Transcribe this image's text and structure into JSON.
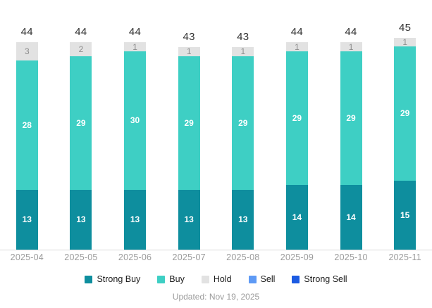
{
  "chart_data": {
    "type": "bar",
    "stacked": true,
    "title": "",
    "xlabel": "",
    "ylabel": "",
    "ylim": [
      0,
      45
    ],
    "grid": false,
    "legend_position": "bottom",
    "categories": [
      "2025-04",
      "2025-05",
      "2025-06",
      "2025-07",
      "2025-08",
      "2025-09",
      "2025-10",
      "2025-11"
    ],
    "series": [
      {
        "name": "Strong Buy",
        "color": "#0e8e9e",
        "label_color": "#ffffff",
        "values": [
          13,
          13,
          13,
          13,
          13,
          14,
          14,
          15
        ]
      },
      {
        "name": "Buy",
        "color": "#3ecfc4",
        "label_color": "#ffffff",
        "values": [
          28,
          29,
          30,
          29,
          29,
          29,
          29,
          29
        ]
      },
      {
        "name": "Hold",
        "color": "#e2e2e2",
        "label_color": "#8c8c8c",
        "values": [
          3,
          2,
          1,
          1,
          1,
          1,
          1,
          1
        ]
      },
      {
        "name": "Sell",
        "color": "#5e9af5",
        "label_color": "#ffffff",
        "values": [
          0,
          0,
          0,
          0,
          0,
          0,
          0,
          0
        ]
      },
      {
        "name": "Strong Sell",
        "color": "#1c5be2",
        "label_color": "#ffffff",
        "values": [
          0,
          0,
          0,
          0,
          0,
          0,
          0,
          0
        ]
      }
    ],
    "totals": [
      44,
      44,
      44,
      43,
      43,
      44,
      44,
      45
    ],
    "footer": "Updated: Nov 19, 2025"
  }
}
